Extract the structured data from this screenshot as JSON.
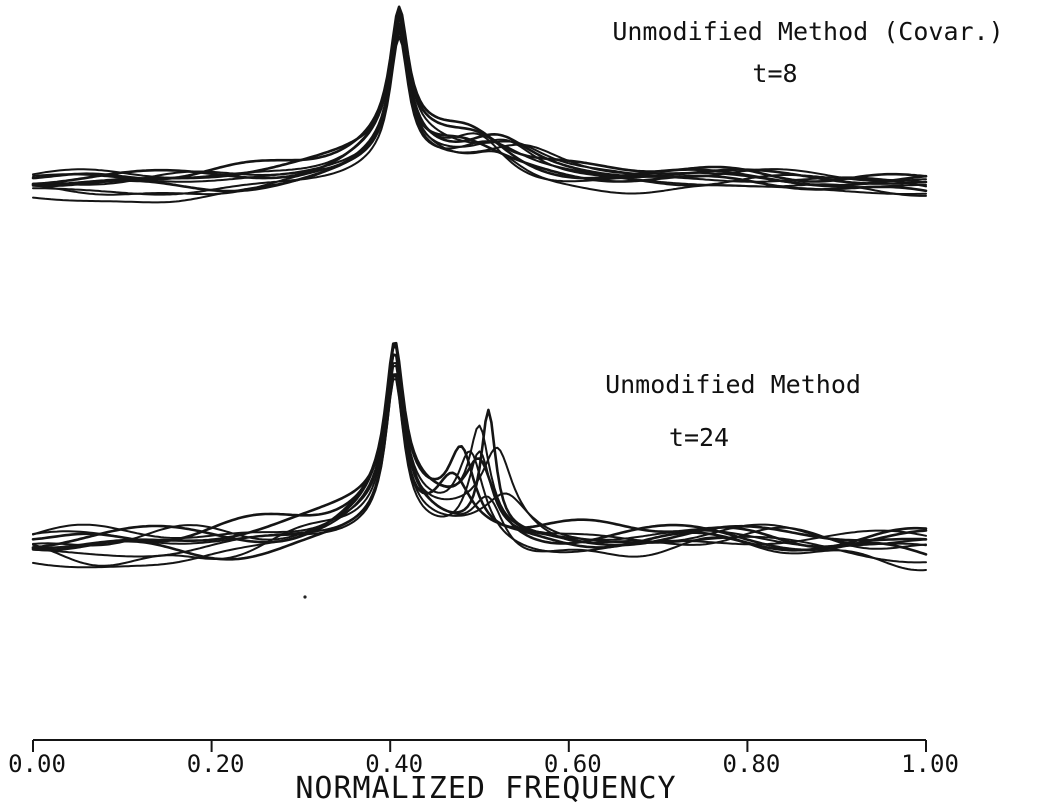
{
  "chart_data": [
    {
      "type": "line",
      "title": "Unmodified Method (Covar.)",
      "subtitle": "t=8",
      "series_count": 10,
      "peak_frequency": 0.41,
      "xlim": [
        0.0,
        1.0
      ]
    },
    {
      "type": "line",
      "title": "Unmodified Method",
      "subtitle": "t=24",
      "series_count": 10,
      "peak_frequencies": [
        0.405,
        0.51
      ],
      "xlim": [
        0.0,
        1.0
      ]
    }
  ],
  "x_axis": {
    "label": "NORMALIZED FREQUENCY",
    "ticks": [
      {
        "value": 0.0,
        "label": "0.00"
      },
      {
        "value": 0.2,
        "label": "0.20"
      },
      {
        "value": 0.4,
        "label": "0.40"
      },
      {
        "value": 0.6,
        "label": "0.60"
      },
      {
        "value": 0.8,
        "label": "0.80"
      },
      {
        "value": 1.0,
        "label": "1.00"
      }
    ]
  },
  "colors": {
    "ink": "#151515",
    "background": "#ffffff"
  }
}
